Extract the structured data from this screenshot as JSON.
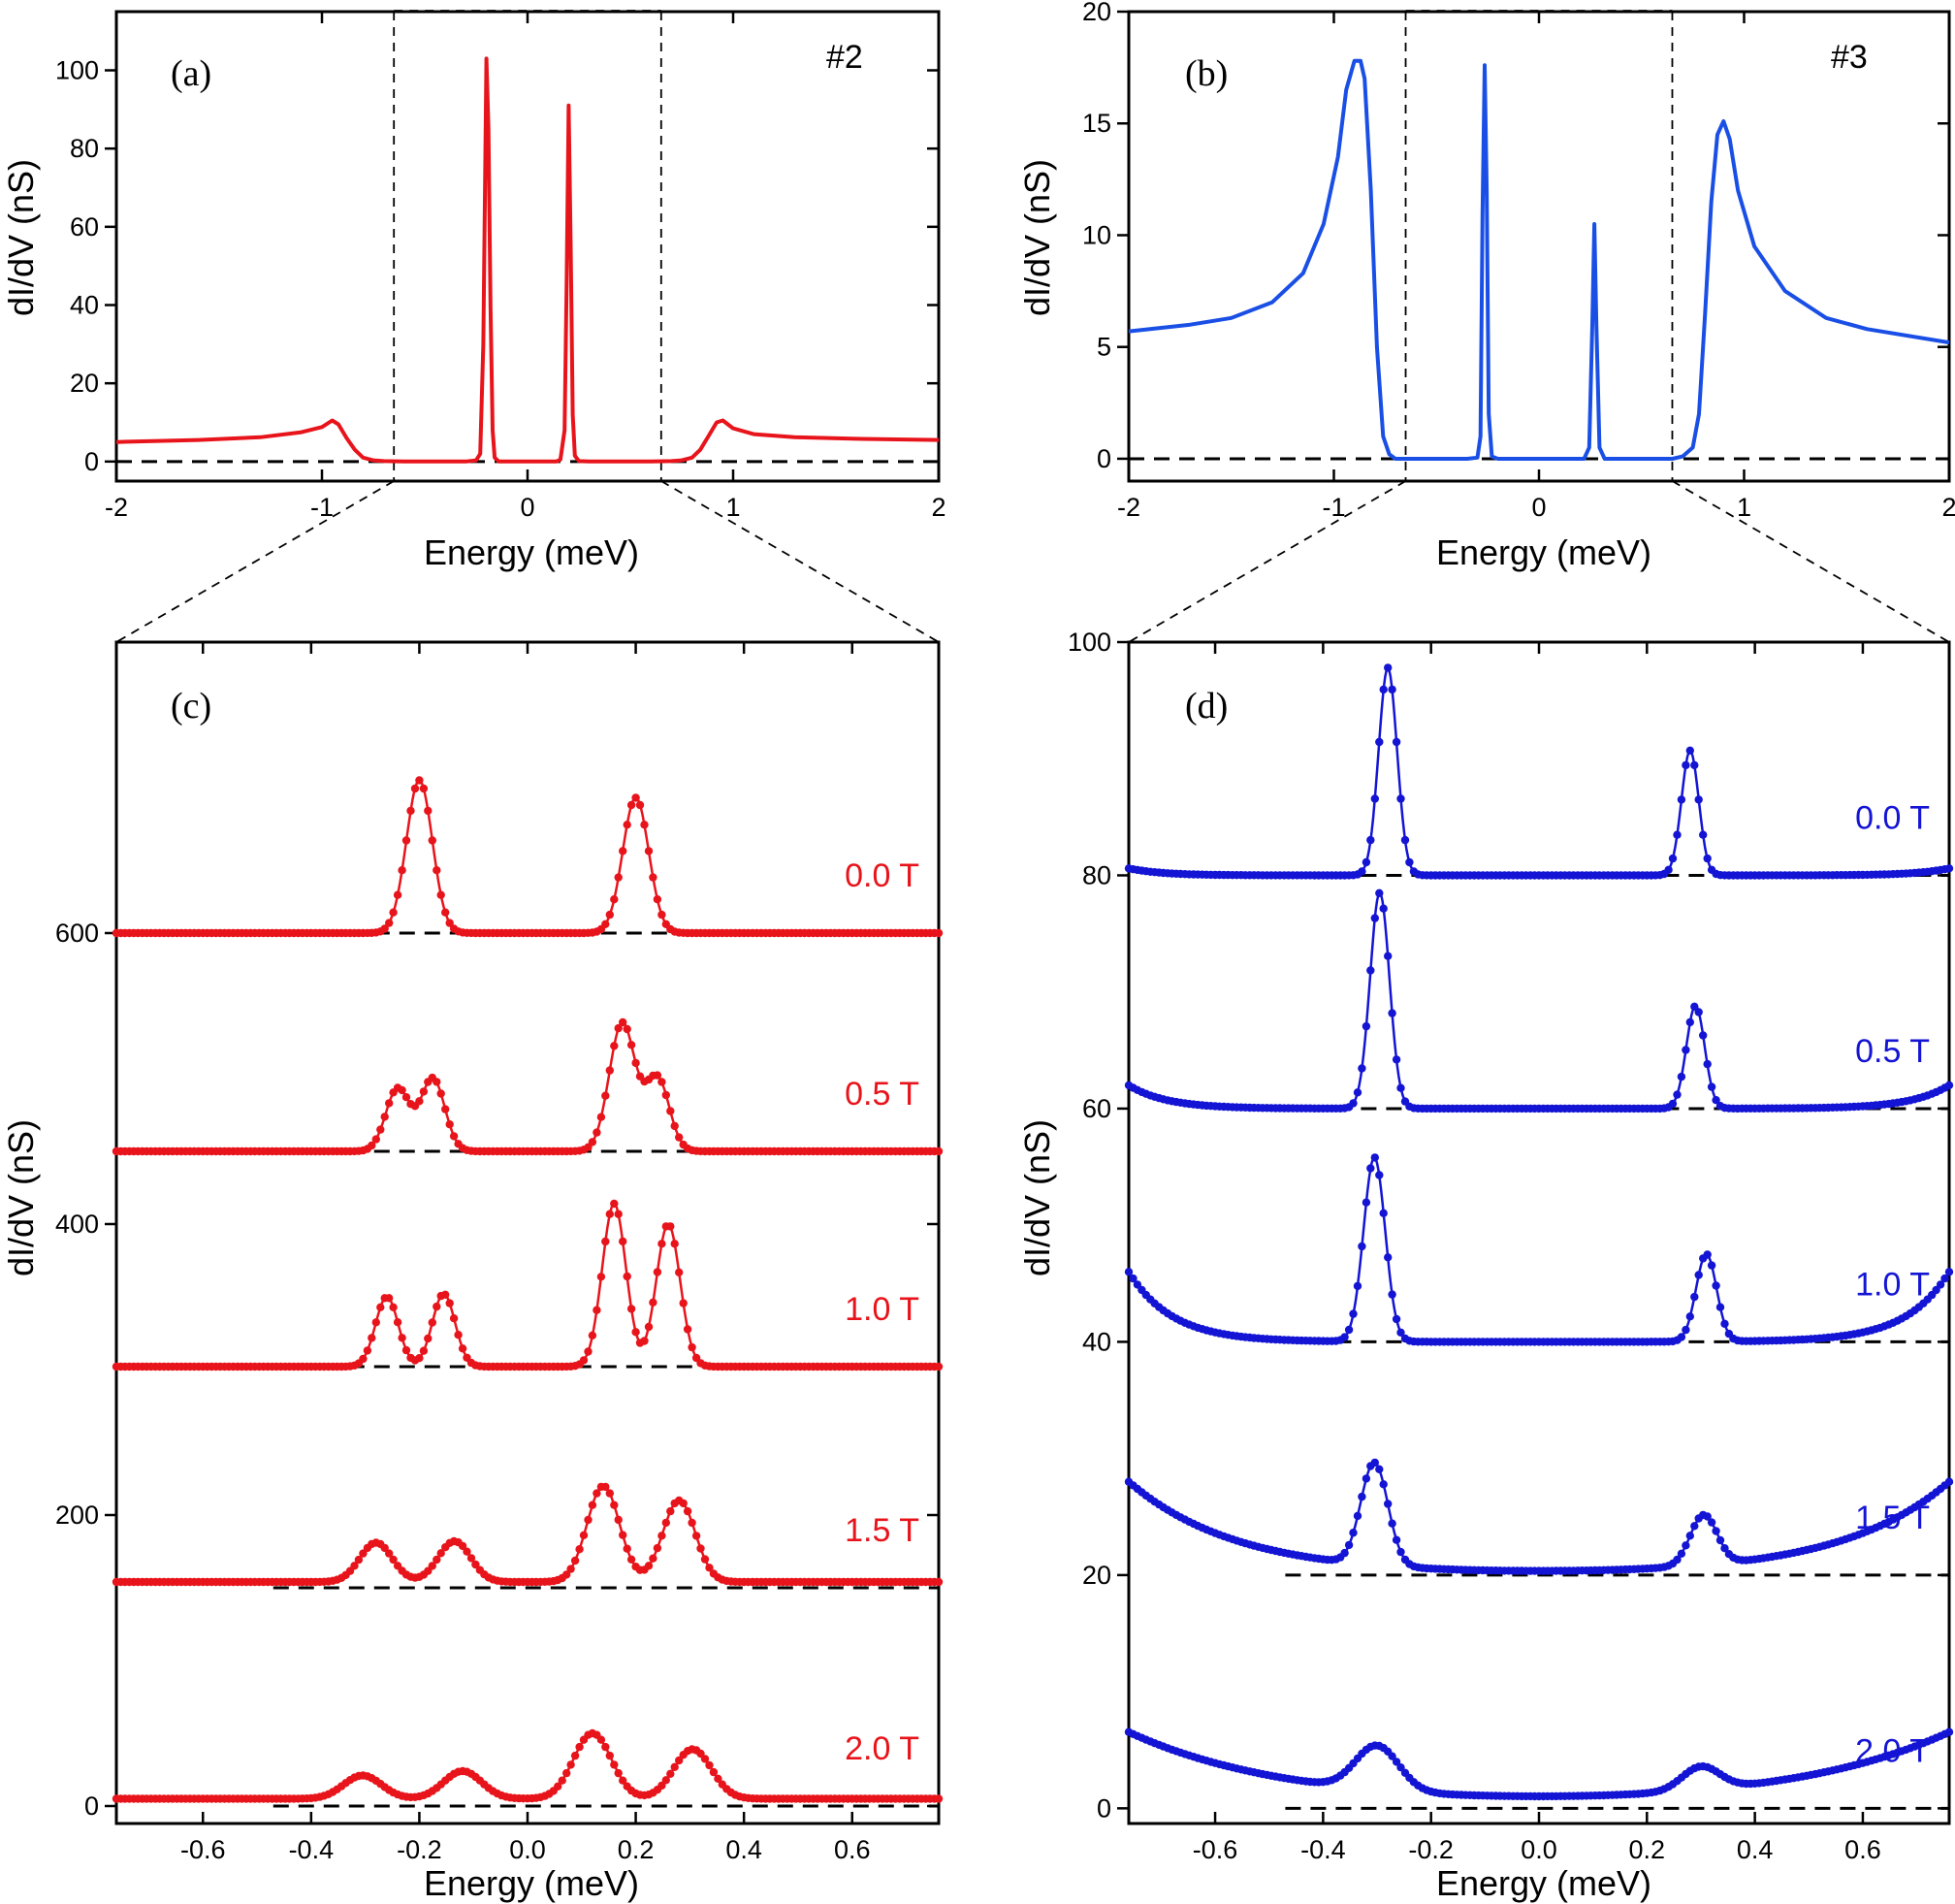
{
  "chart_data": [
    {
      "id": "a",
      "type": "line",
      "panel_label": "(a)",
      "sample_label": "#2",
      "color": "#e8141b",
      "xlabel": "Energy (meV)",
      "ylabel": "dI/dV (nS)",
      "xlim": [
        -2,
        2
      ],
      "ylim": [
        -5,
        115
      ],
      "xticks": [
        -2,
        -1,
        0,
        1,
        2
      ],
      "xtick_labels": [
        "-2",
        "-1",
        "0",
        "1",
        "2"
      ],
      "yticks": [
        0,
        20,
        40,
        60,
        80,
        100
      ],
      "ytick_labels": [
        "0",
        "20",
        "40",
        "60",
        "80",
        "100"
      ],
      "zoom_window": [
        -0.65,
        0.65
      ],
      "baseline": 0,
      "series": [
        {
          "x": [
            -2.0,
            -1.6,
            -1.3,
            -1.1,
            -1.0,
            -0.95,
            -0.92,
            -0.88,
            -0.84,
            -0.8,
            -0.75,
            -0.7,
            -0.6,
            -0.4,
            -0.3,
            -0.25,
            -0.23,
            -0.215,
            -0.2,
            -0.19,
            -0.18,
            -0.17,
            -0.16,
            -0.14,
            -0.1,
            0.0,
            0.1,
            0.14,
            0.16,
            0.18,
            0.19,
            0.2,
            0.21,
            0.22,
            0.23,
            0.25,
            0.3,
            0.4,
            0.6,
            0.7,
            0.75,
            0.8,
            0.84,
            0.88,
            0.92,
            0.95,
            1.0,
            1.1,
            1.3,
            1.6,
            2.0
          ],
          "y": [
            5,
            5.5,
            6.2,
            7.5,
            8.8,
            10.5,
            9.5,
            6,
            3,
            1,
            0.3,
            0.1,
            0,
            0,
            0,
            0.3,
            2,
            30,
            103,
            85,
            40,
            8,
            1,
            0,
            0,
            0,
            0,
            0,
            0.5,
            8,
            45,
            91,
            55,
            12,
            1.5,
            0.1,
            0,
            0,
            0,
            0.1,
            0.3,
            1,
            3,
            6.5,
            10,
            10.5,
            8.5,
            7,
            6.2,
            5.8,
            5.5
          ]
        }
      ]
    },
    {
      "id": "b",
      "type": "line",
      "panel_label": "(b)",
      "sample_label": "#3",
      "color": "#1a4fe6",
      "xlabel": "Energy (meV)",
      "ylabel": "dI/dV (nS)",
      "xlim": [
        -2,
        2
      ],
      "ylim": [
        -1,
        20
      ],
      "xticks": [
        -2,
        -1,
        0,
        1,
        2
      ],
      "xtick_labels": [
        "-2",
        "-1",
        "0",
        "1",
        "2"
      ],
      "yticks": [
        0,
        5,
        10,
        15,
        20
      ],
      "ytick_labels": [
        "0",
        "5",
        "10",
        "15",
        "20"
      ],
      "zoom_window": [
        -0.65,
        0.65
      ],
      "baseline": 0,
      "series": [
        {
          "x": [
            -2.0,
            -1.7,
            -1.5,
            -1.3,
            -1.15,
            -1.05,
            -0.98,
            -0.94,
            -0.9,
            -0.87,
            -0.85,
            -0.82,
            -0.79,
            -0.76,
            -0.73,
            -0.7,
            -0.65,
            -0.5,
            -0.35,
            -0.3,
            -0.285,
            -0.275,
            -0.265,
            -0.255,
            -0.245,
            -0.23,
            -0.2,
            -0.1,
            0.1,
            0.22,
            0.245,
            0.26,
            0.27,
            0.28,
            0.295,
            0.32,
            0.5,
            0.65,
            0.7,
            0.75,
            0.78,
            0.81,
            0.84,
            0.87,
            0.9,
            0.93,
            0.97,
            1.05,
            1.2,
            1.4,
            1.6,
            2.0
          ],
          "y": [
            5.7,
            6.0,
            6.3,
            7.0,
            8.3,
            10.5,
            13.5,
            16.5,
            17.8,
            17.8,
            17,
            12,
            5,
            1,
            0.2,
            0,
            0,
            0,
            0,
            0.05,
            1,
            11,
            17.6,
            12,
            2,
            0.1,
            0,
            0,
            0,
            0,
            0.5,
            6,
            10.5,
            6,
            0.5,
            0,
            0,
            0,
            0.1,
            0.5,
            2,
            6.5,
            11.5,
            14.5,
            15.1,
            14.3,
            12,
            9.5,
            7.5,
            6.3,
            5.8,
            5.2
          ]
        }
      ]
    },
    {
      "id": "c",
      "type": "line",
      "panel_label": "(c)",
      "color": "#e8141b",
      "xlabel": "Energy (meV)",
      "ylabel": "dI/dV (nS)",
      "xlim": [
        -0.76,
        0.76
      ],
      "ylim": [
        -12,
        800
      ],
      "xticks": [
        -0.6,
        -0.4,
        -0.2,
        0.0,
        0.2,
        0.4,
        0.6
      ],
      "xtick_labels": [
        "-0.6",
        "-0.4",
        "-0.2",
        "0.0",
        "0.2",
        "0.4",
        "0.6"
      ],
      "yticks": [
        0,
        200,
        400,
        600
      ],
      "ytick_labels": [
        "0",
        "200",
        "400",
        "600"
      ],
      "markers": true,
      "series": [
        {
          "name": "0.0 T",
          "offset": 600,
          "background": 0,
          "peaks": [
            [
              -0.2,
              105,
              0.024
            ],
            [
              0.2,
              93,
              0.024
            ]
          ]
        },
        {
          "name": "0.5 T",
          "offset": 450,
          "background": 0,
          "peaks": [
            [
              -0.24,
              43,
              0.022
            ],
            [
              -0.175,
              50,
              0.022
            ],
            [
              0.175,
              88,
              0.024
            ],
            [
              0.24,
              50,
              0.022
            ]
          ]
        },
        {
          "name": "1.0 T",
          "offset": 302,
          "background": 0,
          "peaks": [
            [
              -0.26,
              48,
              0.021
            ],
            [
              -0.155,
              50,
              0.021
            ],
            [
              0.16,
              112,
              0.022
            ],
            [
              0.26,
              98,
              0.022
            ]
          ]
        },
        {
          "name": "1.5 T",
          "offset": 150,
          "background": 4,
          "peaks": [
            [
              -0.28,
              27,
              0.03
            ],
            [
              -0.135,
              28,
              0.03
            ],
            [
              0.14,
              66,
              0.03
            ],
            [
              0.28,
              56,
              0.03
            ]
          ]
        },
        {
          "name": "2.0 T",
          "offset": 0,
          "background": 5,
          "peaks": [
            [
              -0.305,
              16,
              0.035
            ],
            [
              -0.12,
              19,
              0.035
            ],
            [
              0.12,
              45,
              0.035
            ],
            [
              0.305,
              34,
              0.035
            ]
          ]
        }
      ]
    },
    {
      "id": "d",
      "type": "line",
      "panel_label": "(d)",
      "color": "#1414d4",
      "xlabel": "Energy (meV)",
      "ylabel": "dI/dV (nS)",
      "xlim": [
        -0.76,
        0.76
      ],
      "ylim": [
        -1.3,
        100
      ],
      "xticks": [
        -0.6,
        -0.4,
        -0.2,
        0.0,
        0.2,
        0.4,
        0.6
      ],
      "xtick_labels": [
        "-0.6",
        "-0.4",
        "-0.2",
        "0.0",
        "0.2",
        "0.4",
        "0.6"
      ],
      "yticks": [
        0,
        20,
        40,
        60,
        80,
        100
      ],
      "ytick_labels": [
        "0",
        "20",
        "40",
        "60",
        "80",
        "100"
      ],
      "markers": true,
      "series": [
        {
          "name": "0.0 T",
          "offset": 80,
          "edge": 0.6,
          "edge_width": 0.06,
          "peaks": [
            [
              -0.28,
              17.8,
              0.017
            ],
            [
              0.28,
              10.7,
              0.016
            ]
          ]
        },
        {
          "name": "0.5 T",
          "offset": 60,
          "edge": 2.0,
          "edge_width": 0.07,
          "peaks": [
            [
              -0.295,
              18.5,
              0.018
            ],
            [
              0.29,
              8.8,
              0.017
            ]
          ]
        },
        {
          "name": "1.0 T",
          "offset": 40,
          "edge": 6.0,
          "edge_width": 0.08,
          "peaks": [
            [
              -0.305,
              15.8,
              0.02
            ],
            [
              0.31,
              7.5,
              0.019
            ]
          ]
        },
        {
          "name": "1.5 T",
          "offset": 20,
          "edge": 8.0,
          "edge_width": 0.2,
          "peaks": [
            [
              -0.305,
              8.8,
              0.025
            ],
            [
              0.305,
              4.3,
              0.025
            ]
          ]
        },
        {
          "name": "2.0 T",
          "offset": 0,
          "edge": 6.5,
          "edge_width": 0.3,
          "peaks": [
            [
              -0.3,
              3.8,
              0.04
            ],
            [
              0.3,
              2.0,
              0.035
            ]
          ]
        }
      ]
    }
  ]
}
